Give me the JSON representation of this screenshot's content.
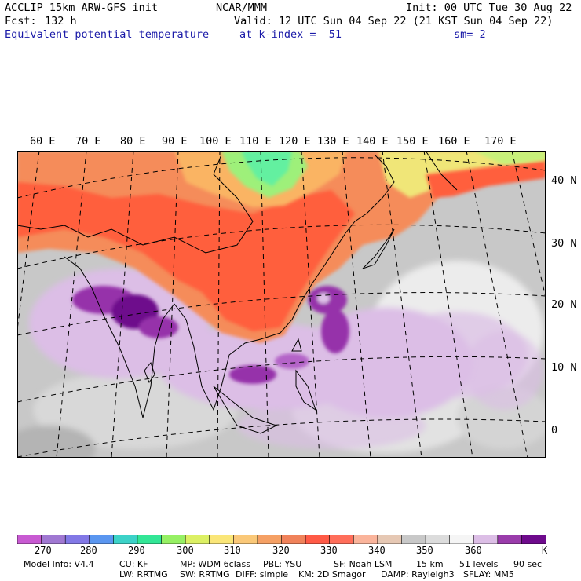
{
  "header": {
    "model": "ACCLIP 15km ARW-GFS init",
    "org": "NCAR/MMM",
    "init": "Init: 00 UTC Tue 30 Aug 22",
    "fcst_label": "Fcst:",
    "fcst_value": "132 h",
    "valid": "Valid: 12 UTC Sun 04 Sep 22 (21 KST Sun 04 Sep 22)",
    "field": "Equivalent potential temperature",
    "level": "at k-index =  51",
    "smooth": "sm= 2"
  },
  "map": {
    "lon_labels": [
      "60 E",
      "70 E",
      "80 E",
      "90 E",
      "100 E",
      "110 E",
      "120 E",
      "130 E",
      "140 E",
      "150 E",
      "160 E",
      "170 E"
    ],
    "lat_labels": [
      "40 N",
      "30 N",
      "20 N",
      "10 N",
      "0"
    ],
    "colors": {
      "ocean_gray": "#c8c8c8",
      "hot": "#ff5f3c",
      "orange": "#f58c5a",
      "green": "#64f0a0",
      "purple": "#9632aa",
      "lilac": "#dcbee6"
    }
  },
  "legend": {
    "unit": "K",
    "ticks": [
      "270",
      "280",
      "290",
      "300",
      "310",
      "320",
      "330",
      "340",
      "350",
      "360"
    ],
    "colors": [
      "#c85ad2",
      "#a078d2",
      "#8278e6",
      "#5a96f0",
      "#3cd2c8",
      "#32e696",
      "#96f064",
      "#dcf064",
      "#fae678",
      "#fac878",
      "#f5a064",
      "#f0825a",
      "#ff5a46",
      "#ff6e5a",
      "#fab49b",
      "#e6c8b4",
      "#c8c8c8",
      "#dcdcdc",
      "#f5f5f5",
      "#dcbee6",
      "#9a3cab",
      "#6e0a8c"
    ]
  },
  "footer": {
    "line1": [
      "Model Info: V4.4",
      "CU: KF",
      "MP: WDM 6class",
      "PBL: YSU",
      "SF: Noah LSM",
      "15 km",
      "51 levels",
      "90 sec"
    ],
    "line2": [
      "LW: RRTMG",
      "SW: RRTMG",
      "DIFF: simple",
      "KM: 2D Smagor",
      "DAMP: Rayleigh3",
      "SFLAY: MM5"
    ]
  }
}
